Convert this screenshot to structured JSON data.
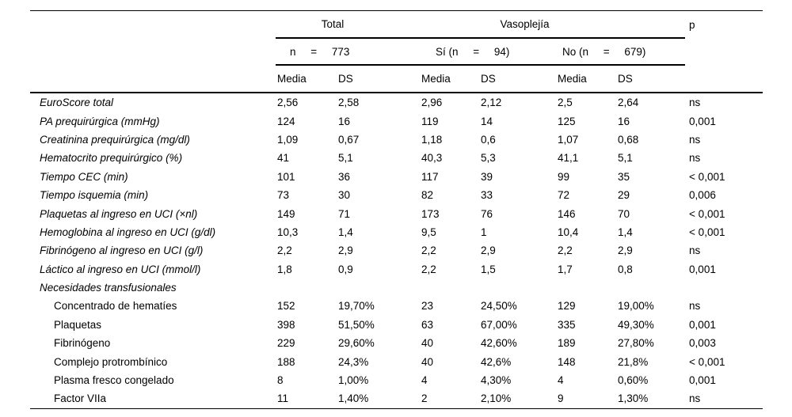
{
  "header": {
    "group_total": "Total",
    "group_vasoplejia": "Vasoplejía",
    "p_label": "p",
    "n_total": "n     =     773",
    "n_si": "Sí (n     =     94)",
    "n_no": "No (n     =     679)",
    "media_label": "Media",
    "ds_label": "DS"
  },
  "rows": [
    {
      "label": "EuroScore total",
      "italic": true,
      "indent": false,
      "values": [
        "2,56",
        "2,58",
        "2,96",
        "2,12",
        "2,5",
        "2,64"
      ],
      "p": "ns"
    },
    {
      "label": "PA prequirúrgica (mmHg)",
      "italic": true,
      "indent": false,
      "values": [
        "124",
        "16",
        "119",
        "14",
        "125",
        "16"
      ],
      "p": "0,001"
    },
    {
      "label": "Creatinina prequirúrgica (mg/dl)",
      "italic": true,
      "indent": false,
      "values": [
        "1,09",
        "0,67",
        "1,18",
        "0,6",
        "1,07",
        "0,68"
      ],
      "p": "ns"
    },
    {
      "label": "Hematocrito prequirúrgico (%)",
      "italic": true,
      "indent": false,
      "values": [
        "41",
        "5,1",
        "40,3",
        "5,3",
        "41,1",
        "5,1"
      ],
      "p": "ns"
    },
    {
      "label": "Tiempo CEC (min)",
      "italic": true,
      "indent": false,
      "values": [
        "101",
        "36",
        "117",
        "39",
        "99",
        "35"
      ],
      "p": "< 0,001"
    },
    {
      "label": "Tiempo isquemia (min)",
      "italic": true,
      "indent": false,
      "values": [
        "73",
        "30",
        "82",
        "33",
        "72",
        "29"
      ],
      "p": "0,006"
    },
    {
      "label": "Plaquetas al ingreso en UCI (×nl)",
      "italic": true,
      "indent": false,
      "values": [
        "149",
        "71",
        "173",
        "76",
        "146",
        "70"
      ],
      "p": "< 0,001"
    },
    {
      "label": "Hemoglobina al ingreso en UCI (g/dl)",
      "italic": true,
      "indent": false,
      "values": [
        "10,3",
        "1,4",
        "9,5",
        "1",
        "10,4",
        "1,4"
      ],
      "p": "< 0,001"
    },
    {
      "label": "Fibrinógeno al ingreso en UCI (g/l)",
      "italic": true,
      "indent": false,
      "values": [
        "2,2",
        "2,9",
        "2,2",
        "2,9",
        "2,2",
        "2,9"
      ],
      "p": "ns"
    },
    {
      "label": "Láctico al ingreso en UCI (mmol/l)",
      "italic": true,
      "indent": false,
      "values": [
        "1,8",
        "0,9",
        "2,2",
        "1,5",
        "1,7",
        "0,8"
      ],
      "p": "0,001"
    },
    {
      "label": "Necesidades transfusionales",
      "italic": true,
      "indent": false,
      "values": [
        "",
        "",
        "",
        "",
        "",
        ""
      ],
      "p": ""
    },
    {
      "label": "Concentrado de hematíes",
      "italic": false,
      "indent": true,
      "values": [
        "152",
        "19,70%",
        "23",
        "24,50%",
        "129",
        "19,00%"
      ],
      "p": "ns"
    },
    {
      "label": "Plaquetas",
      "italic": false,
      "indent": true,
      "values": [
        "398",
        "51,50%",
        "63",
        "67,00%",
        "335",
        "49,30%"
      ],
      "p": "0,001"
    },
    {
      "label": "Fibrinógeno",
      "italic": false,
      "indent": true,
      "values": [
        "229",
        "29,60%",
        "40",
        "42,60%",
        "189",
        "27,80%"
      ],
      "p": "0,003"
    },
    {
      "label": "Complejo protrombínico",
      "italic": false,
      "indent": true,
      "values": [
        "188",
        "24,3%",
        "40",
        "42,6%",
        "148",
        "21,8%"
      ],
      "p": "< 0,001"
    },
    {
      "label": "Plasma fresco congelado",
      "italic": false,
      "indent": true,
      "values": [
        "8",
        "1,00%",
        "4",
        "4,30%",
        "4",
        "0,60%"
      ],
      "p": "0,001"
    },
    {
      "label": "Factor VIIa",
      "italic": false,
      "indent": true,
      "values": [
        "11",
        "1,40%",
        "2",
        "2,10%",
        "9",
        "1,30%"
      ],
      "p": "ns"
    }
  ]
}
